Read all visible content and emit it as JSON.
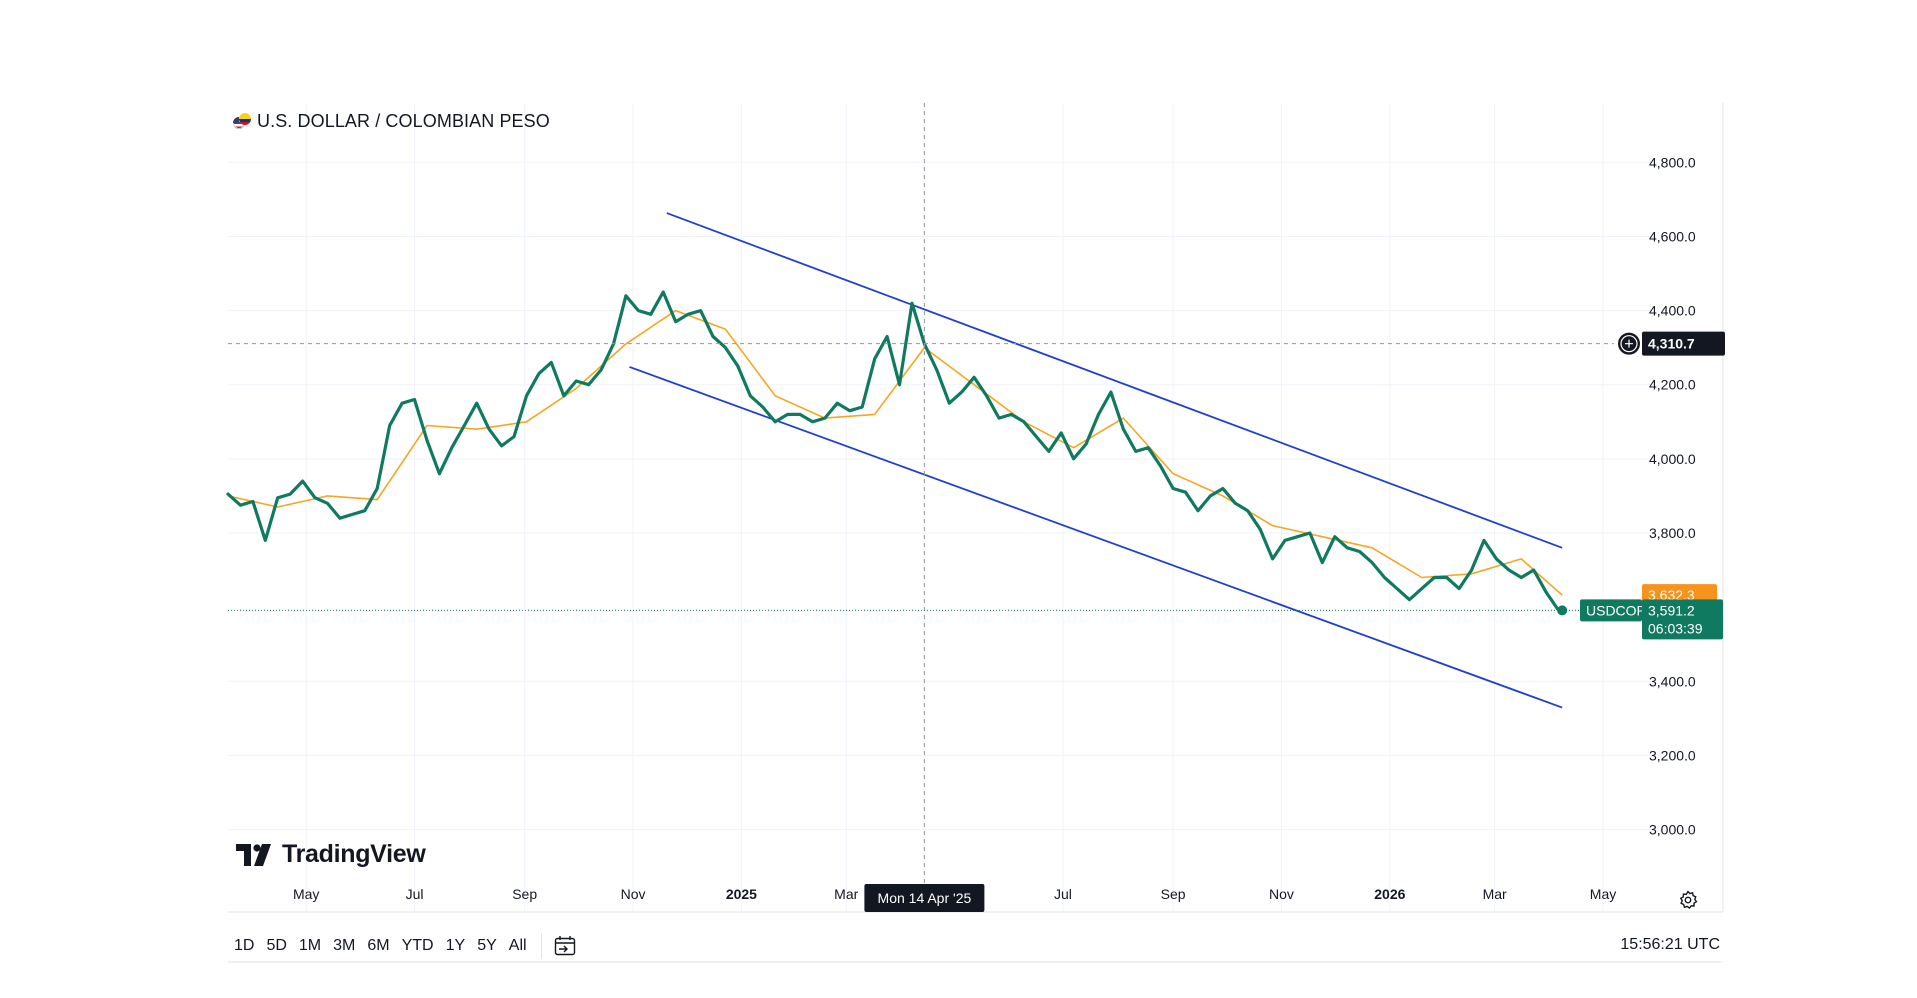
{
  "header": {
    "title": "U.S. DOLLAR / COLOMBIAN PESO",
    "icon": "usd-cop-flag-icon"
  },
  "brand": {
    "logo_text": "TradingView",
    "icon": "tradingview-logo-icon"
  },
  "toolbar": {
    "ranges": [
      "1D",
      "5D",
      "1M",
      "3M",
      "6M",
      "YTD",
      "1Y",
      "5Y",
      "All"
    ],
    "date_range_icon": "calendar-goto-icon",
    "clock": "15:56:21 UTC",
    "settings_icon": "gear-icon"
  },
  "chart_data": {
    "type": "line",
    "symbol": "USDCOP",
    "x_tick_labels": [
      "May",
      "Jul",
      "Sep",
      "Nov",
      "2025",
      "Mar",
      "Jul",
      "Sep",
      "Nov",
      "2026",
      "Mar",
      "May"
    ],
    "bold_x_ticks": [
      "2025",
      "2026"
    ],
    "y_tick_labels": [
      "4,800.0",
      "4,600.0",
      "4,400.0",
      "4,200.0",
      "4,000.0",
      "3,800.0",
      "3,400.0",
      "3,200.0",
      "3,000.0"
    ],
    "ylim": [
      2880,
      4960
    ],
    "xlim": [
      "2024-03-18",
      "2026-05-28"
    ],
    "grid": true,
    "crosshair": {
      "date": "2025-04-14",
      "date_label": "Mon 14 Apr '25",
      "price": 4310.7,
      "price_label": "4,310.7"
    },
    "last_price": {
      "value": 3591.2,
      "label": "3,591.2",
      "countdown": "06:03:39",
      "symbol_label": "USDCOP"
    },
    "ma_last": {
      "value": 3632.3,
      "label": "3,632.3"
    },
    "colors": {
      "price_line": "#0f7a5f",
      "ma_line": "#f6a623",
      "channel": "#1f3fcf",
      "last_price_badge": "#0f7a5f",
      "ma_badge": "#f7931a",
      "crosshair_badge": "#131722"
    },
    "channel_lines": [
      {
        "name": "upper",
        "start": {
          "date": "2024-11-20",
          "value": 4663
        },
        "end": {
          "date": "2026-04-08",
          "value": 3760
        }
      },
      {
        "name": "lower",
        "start": {
          "date": "2024-10-30",
          "value": 4248
        },
        "end": {
          "date": "2026-04-08",
          "value": 3329
        }
      }
    ],
    "series": [
      {
        "role": "price",
        "x": [
          "2024-03-18",
          "2024-03-25",
          "2024-04-01",
          "2024-04-08",
          "2024-04-15",
          "2024-04-22",
          "2024-04-29",
          "2024-05-06",
          "2024-05-13",
          "2024-05-20",
          "2024-05-27",
          "2024-06-03",
          "2024-06-10",
          "2024-06-17",
          "2024-06-24",
          "2024-07-01",
          "2024-07-08",
          "2024-07-15",
          "2024-07-22",
          "2024-07-29",
          "2024-08-05",
          "2024-08-12",
          "2024-08-19",
          "2024-08-26",
          "2024-09-02",
          "2024-09-09",
          "2024-09-16",
          "2024-09-23",
          "2024-09-30",
          "2024-10-07",
          "2024-10-14",
          "2024-10-21",
          "2024-10-28",
          "2024-11-04",
          "2024-11-11",
          "2024-11-18",
          "2024-11-25",
          "2024-12-02",
          "2024-12-09",
          "2024-12-16",
          "2024-12-23",
          "2024-12-30",
          "2025-01-06",
          "2025-01-13",
          "2025-01-20",
          "2025-01-27",
          "2025-02-03",
          "2025-02-10",
          "2025-02-17",
          "2025-02-24",
          "2025-03-03",
          "2025-03-10",
          "2025-03-17",
          "2025-03-24",
          "2025-03-31",
          "2025-04-07",
          "2025-04-14",
          "2025-04-21",
          "2025-04-28",
          "2025-05-05",
          "2025-05-12",
          "2025-05-19",
          "2025-05-26",
          "2025-06-02",
          "2025-06-09",
          "2025-06-16",
          "2025-06-23",
          "2025-06-30",
          "2025-07-07",
          "2025-07-14",
          "2025-07-21",
          "2025-07-28",
          "2025-08-04",
          "2025-08-11",
          "2025-08-18",
          "2025-08-25",
          "2025-09-01",
          "2025-09-08",
          "2025-09-15",
          "2025-09-22",
          "2025-09-29",
          "2025-10-06",
          "2025-10-13",
          "2025-10-20",
          "2025-10-27",
          "2025-11-03",
          "2025-11-10",
          "2025-11-17",
          "2025-11-24",
          "2025-12-01",
          "2025-12-08",
          "2025-12-15",
          "2025-12-22",
          "2025-12-29",
          "2026-01-05",
          "2026-01-12",
          "2026-01-19",
          "2026-01-26",
          "2026-02-02",
          "2026-02-09",
          "2026-02-16",
          "2026-02-23",
          "2026-03-02",
          "2026-03-09",
          "2026-03-16",
          "2026-03-23",
          "2026-03-30",
          "2026-04-06",
          "2026-04-08"
        ],
        "values": [
          3905,
          3875,
          3885,
          3780,
          3895,
          3905,
          3940,
          3895,
          3880,
          3840,
          3850,
          3860,
          3920,
          4090,
          4150,
          4160,
          4050,
          3960,
          4030,
          4090,
          4150,
          4080,
          4035,
          4060,
          4170,
          4230,
          4260,
          4170,
          4210,
          4200,
          4240,
          4310,
          4440,
          4400,
          4390,
          4450,
          4370,
          4390,
          4400,
          4330,
          4300,
          4250,
          4170,
          4140,
          4100,
          4120,
          4120,
          4100,
          4110,
          4150,
          4130,
          4140,
          4270,
          4330,
          4200,
          4420,
          4310,
          4240,
          4150,
          4180,
          4220,
          4170,
          4110,
          4120,
          4100,
          4060,
          4020,
          4070,
          4000,
          4040,
          4120,
          4180,
          4080,
          4020,
          4030,
          3980,
          3920,
          3910,
          3860,
          3900,
          3920,
          3880,
          3860,
          3810,
          3730,
          3780,
          3790,
          3800,
          3720,
          3790,
          3760,
          3750,
          3720,
          3680,
          3650,
          3620,
          3650,
          3680,
          3680,
          3650,
          3700,
          3780,
          3730,
          3700,
          3680,
          3700,
          3640,
          3591.2,
          3591.2
        ]
      },
      {
        "role": "moving-average",
        "x": [
          "2024-03-18",
          "2024-04-15",
          "2024-05-13",
          "2024-06-10",
          "2024-07-08",
          "2024-08-05",
          "2024-09-02",
          "2024-09-30",
          "2024-10-28",
          "2024-11-25",
          "2024-12-23",
          "2025-01-20",
          "2025-02-17",
          "2025-03-17",
          "2025-04-14",
          "2025-05-12",
          "2025-06-09",
          "2025-07-07",
          "2025-08-04",
          "2025-09-01",
          "2025-09-29",
          "2025-10-27",
          "2025-11-24",
          "2025-12-22",
          "2026-01-19",
          "2026-02-16",
          "2026-03-16",
          "2026-04-08"
        ],
        "values": [
          3900,
          3870,
          3900,
          3890,
          4090,
          4080,
          4100,
          4190,
          4310,
          4400,
          4350,
          4170,
          4110,
          4120,
          4300,
          4200,
          4100,
          4030,
          4110,
          3960,
          3900,
          3820,
          3790,
          3760,
          3680,
          3690,
          3730,
          3632.3
        ]
      }
    ]
  }
}
